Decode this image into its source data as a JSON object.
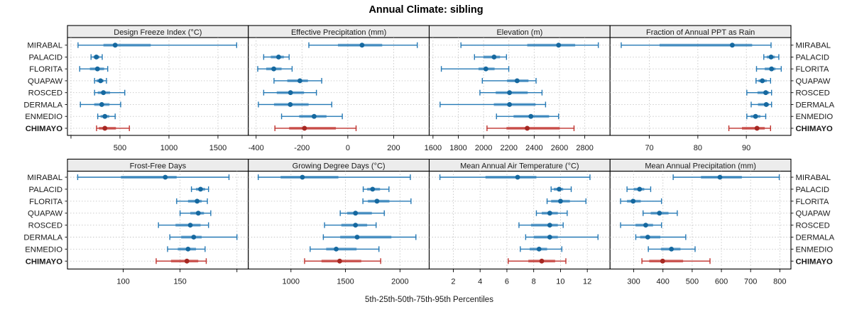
{
  "title": "Annual Climate: sibling",
  "caption": "5th-25th-50th-75th-95th Percentiles",
  "sites": [
    "MIRABAL",
    "PALACID",
    "FLORITA",
    "QUAPAW",
    "ROSCED",
    "DERMALA",
    "ENMEDIO",
    "CHIMAYO"
  ],
  "highlight_site": "CHIMAYO",
  "colors": {
    "series_line": "#2579b5",
    "series_band": "rgba(37,121,181,0.6)",
    "series_dot": "#15689f",
    "highlight_line": "#bf312c",
    "highlight_band": "rgba(191,49,44,0.6)",
    "highlight_dot": "#a62822",
    "strip_bg": "#ececec",
    "grid": "#c6c6c6",
    "border": "#000000",
    "text": "#1a1a1a"
  },
  "chart_data": {
    "type": "dotplot",
    "subtype": "percentile-errorbars",
    "percentiles": [
      "5th",
      "25th",
      "50th",
      "75th",
      "95th"
    ],
    "legend_note": "thin line = 5th-95th, thick band = 25th-75th, dot = 50th",
    "grid": "dotted",
    "panels": [
      {
        "title": "Design Freeze Index (°C)",
        "row": 0,
        "col": 0,
        "xlim": [
          -36,
          1810
        ],
        "ticks": [
          0,
          500,
          1000,
          1500
        ],
        "tick_labels": [
          "",
          "500",
          "1000",
          "1500"
        ],
        "values": {
          "MIRABAL": [
            72,
            331,
            451,
            814,
            1691
          ],
          "PALACID": [
            205,
            230,
            259,
            290,
            319
          ],
          "FLORITA": [
            89,
            193,
            270,
            338,
            375
          ],
          "QUAPAW": [
            241,
            261,
            302,
            333,
            362
          ],
          "ROSCED": [
            241,
            273,
            331,
            399,
            549
          ],
          "DERMALA": [
            96,
            237,
            314,
            393,
            507
          ],
          "ENMEDIO": [
            273,
            302,
            346,
            391,
            451
          ],
          "CHIMAYO": [
            261,
            285,
            346,
            459,
            596
          ]
        }
      },
      {
        "title": "Effective Precipitation (mm)",
        "row": 0,
        "col": 1,
        "xlim": [
          -434,
          355
        ],
        "ticks": [
          -400,
          -200,
          0,
          200
        ],
        "tick_labels": [
          "-400",
          "-200",
          "0",
          "200"
        ],
        "values": {
          "MIRABAL": [
            -170,
            -43,
            62,
            150,
            303
          ],
          "PALACID": [
            -367,
            -336,
            -302,
            -279,
            -256
          ],
          "FLORITA": [
            -393,
            -356,
            -323,
            -289,
            -243
          ],
          "QUAPAW": [
            -322,
            -264,
            -209,
            -174,
            -114
          ],
          "ROSCED": [
            -367,
            -310,
            -250,
            -191,
            -137
          ],
          "DERMALA": [
            -390,
            -322,
            -251,
            -171,
            -70
          ],
          "ENMEDIO": [
            -289,
            -212,
            -147,
            -93,
            -24
          ],
          "CHIMAYO": [
            -318,
            -256,
            -189,
            -52,
            36
          ]
        }
      },
      {
        "title": "Elevation (m)",
        "row": 0,
        "col": 2,
        "xlim": [
          1570,
          3000
        ],
        "ticks": [
          1600,
          1800,
          2000,
          2200,
          2400,
          2600,
          2800
        ],
        "tick_labels": [
          "1600",
          "1800",
          "2000",
          "2200",
          "2400",
          "2600",
          "2800"
        ],
        "values": {
          "MIRABAL": [
            1821,
            2345,
            2593,
            2724,
            2907
          ],
          "PALACID": [
            1928,
            1999,
            2083,
            2130,
            2181
          ],
          "FLORITA": [
            1666,
            1960,
            2018,
            2087,
            2199
          ],
          "QUAPAW": [
            1990,
            2186,
            2265,
            2355,
            2415
          ],
          "ROSCED": [
            1971,
            2096,
            2205,
            2349,
            2462
          ],
          "DERMALA": [
            1656,
            2081,
            2205,
            2411,
            2490
          ],
          "ENMEDIO": [
            2102,
            2237,
            2374,
            2518,
            2593
          ],
          "CHIMAYO": [
            2027,
            2181,
            2345,
            2602,
            2715
          ]
        }
      },
      {
        "title": "Fraction of Annual PPT as Rain",
        "row": 0,
        "col": 3,
        "xlim": [
          61.9,
          99.2
        ],
        "ticks": [
          70,
          80,
          90
        ],
        "tick_labels": [
          "70",
          "80",
          "90"
        ],
        "values": {
          "MIRABAL": [
            64.2,
            72.1,
            87.1,
            91.2,
            95.1
          ],
          "PALACID": [
            93.6,
            94.2,
            95.1,
            95.9,
            96.7
          ],
          "FLORITA": [
            92.1,
            93.8,
            95.2,
            96.0,
            97.2
          ],
          "QUAPAW": [
            92.0,
            92.5,
            93.3,
            94.2,
            95.0
          ],
          "ROSCED": [
            90.1,
            92.3,
            94.0,
            94.7,
            95.2
          ],
          "DERMALA": [
            91.0,
            92.4,
            94.1,
            94.7,
            95.2
          ],
          "ENMEDIO": [
            90.1,
            90.9,
            91.9,
            92.9,
            94.0
          ],
          "CHIMAYO": [
            86.4,
            89.1,
            92.2,
            93.8,
            95.0
          ]
        }
      },
      {
        "title": "Frost-Free Days",
        "row": 1,
        "col": 0,
        "xlim": [
          51,
          210
        ],
        "ticks": [
          100,
          150,
          200
        ],
        "tick_labels": [
          "100",
          "150",
          ""
        ],
        "values": {
          "MIRABAL": [
            60,
            98,
            137,
            147,
            193
          ],
          "PALACID": [
            160,
            164,
            168,
            172,
            175
          ],
          "FLORITA": [
            147,
            157,
            165,
            169,
            174
          ],
          "QUAPAW": [
            150,
            159,
            166,
            171,
            177
          ],
          "ROSCED": [
            131,
            146,
            159,
            168,
            175
          ],
          "DERMALA": [
            141,
            151,
            162,
            169,
            200
          ],
          "ENMEDIO": [
            139,
            148,
            157,
            164,
            172
          ],
          "CHIMAYO": [
            129,
            142,
            156,
            166,
            173
          ]
        }
      },
      {
        "title": "Growing Degree Days (°C)",
        "row": 1,
        "col": 1,
        "xlim": [
          609,
          2268
        ],
        "ticks": [
          1000,
          1500,
          2000
        ],
        "tick_labels": [
          "1000",
          "1500",
          "2000"
        ],
        "values": {
          "MIRABAL": [
            700,
            905,
            1105,
            1435,
            2095
          ],
          "PALACID": [
            1663,
            1699,
            1749,
            1817,
            1899
          ],
          "FLORITA": [
            1660,
            1706,
            1789,
            1903,
            2101
          ],
          "QUAPAW": [
            1452,
            1516,
            1592,
            1742,
            1856
          ],
          "ROSCED": [
            1308,
            1462,
            1592,
            1699,
            1781
          ],
          "DERMALA": [
            1297,
            1452,
            1607,
            1921,
            2146
          ],
          "ENMEDIO": [
            1176,
            1323,
            1415,
            1602,
            1807
          ],
          "CHIMAYO": [
            1125,
            1280,
            1447,
            1645,
            1823
          ]
        }
      },
      {
        "title": "Mean Annual Air Temperature (°C)",
        "row": 1,
        "col": 2,
        "xlim": [
          0.2,
          13.7
        ],
        "ticks": [
          2,
          4,
          6,
          8,
          10,
          12
        ],
        "tick_labels": [
          "2",
          "4",
          "6",
          "8",
          "10",
          "12"
        ],
        "values": {
          "MIRABAL": [
            1.0,
            4.4,
            6.8,
            8.2,
            12.2
          ],
          "PALACID": [
            9.3,
            9.5,
            9.9,
            10.2,
            10.8
          ],
          "FLORITA": [
            9.0,
            9.3,
            10.0,
            10.7,
            11.9
          ],
          "QUAPAW": [
            8.2,
            8.6,
            9.2,
            9.8,
            10.5
          ],
          "ROSCED": [
            6.9,
            7.8,
            9.2,
            9.8,
            10.2
          ],
          "DERMALA": [
            7.4,
            8.0,
            9.2,
            9.8,
            12.8
          ],
          "ENMEDIO": [
            7.0,
            7.7,
            8.4,
            9.0,
            10.1
          ],
          "CHIMAYO": [
            6.1,
            7.6,
            8.6,
            9.6,
            10.4
          ]
        }
      },
      {
        "title": "Mean Annual Precipitation (mm)",
        "row": 1,
        "col": 3,
        "xlim": [
          219,
          838
        ],
        "ticks": [
          300,
          400,
          500,
          600,
          700,
          800
        ],
        "tick_labels": [
          "300",
          "400",
          "500",
          "600",
          "700",
          "800"
        ],
        "values": {
          "MIRABAL": [
            435,
            530,
            595,
            670,
            798
          ],
          "PALACID": [
            277,
            300,
            320,
            336,
            358
          ],
          "FLORITA": [
            255,
            277,
            298,
            324,
            395
          ],
          "QUAPAW": [
            332,
            358,
            388,
            419,
            449
          ],
          "ROSCED": [
            255,
            306,
            341,
            366,
            395
          ],
          "DERMALA": [
            307,
            322,
            348,
            391,
            478
          ],
          "ENMEDIO": [
            350,
            393,
            429,
            460,
            510
          ],
          "CHIMAYO": [
            328,
            353,
            399,
            469,
            561
          ]
        }
      }
    ]
  }
}
